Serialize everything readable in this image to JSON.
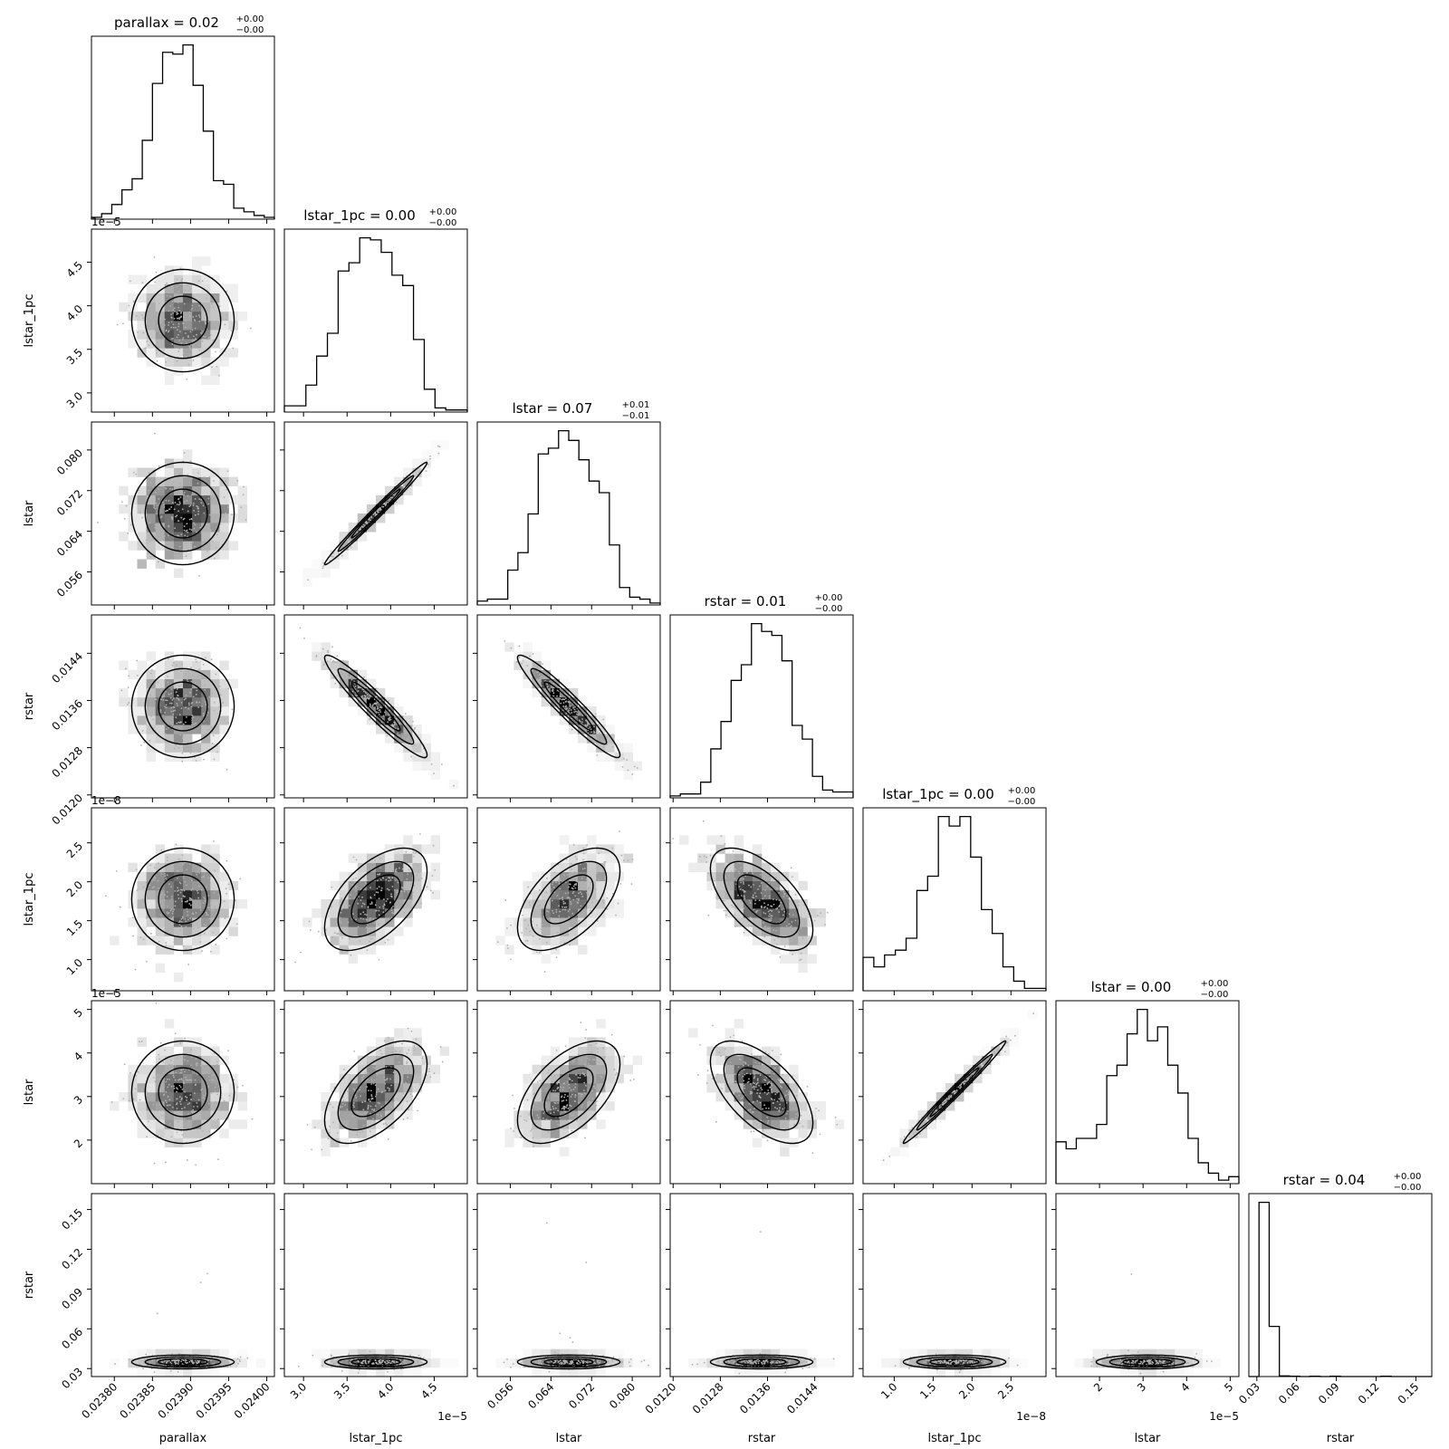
{
  "chart_data": {
    "type": "corner",
    "grid": false,
    "params": [
      {
        "name": "parallax",
        "title_main": "parallax = 0.02",
        "title_sup": "+0.00",
        "title_sub": "−0.00",
        "range": [
          0.02377,
          0.02401
        ],
        "ticks": [
          0.0238,
          0.02385,
          0.0239,
          0.02395,
          0.024
        ],
        "tick_labels": [
          "0.02380",
          "0.02385",
          "0.02390",
          "0.02395",
          "0.02400"
        ],
        "offset": "",
        "hist": [
          1,
          3,
          8,
          16,
          22,
          43,
          74,
          91,
          90,
          95,
          73,
          48,
          21,
          19,
          6,
          4,
          2,
          1
        ]
      },
      {
        "name": "lstar_1pc",
        "title_main": "lstar_1pc = 0.00",
        "title_sup": "+0.00",
        "title_sub": "−0.00",
        "range": [
          2.78e-05,
          4.88e-05
        ],
        "ticks": [
          3e-05,
          3.5e-05,
          4e-05,
          4.5e-05
        ],
        "tick_labels": [
          "3.0",
          "3.5",
          "4.0",
          "4.5"
        ],
        "offset": "1e−5",
        "hist": [
          3,
          3,
          13,
          27,
          38,
          68,
          72,
          84,
          83,
          77,
          66,
          61,
          35,
          11,
          2,
          1,
          1
        ]
      },
      {
        "name": "lstar",
        "title_main": "lstar = 0.07",
        "title_sup": "+0.01",
        "title_sub": "−0.01",
        "range": [
          0.0495,
          0.0855
        ],
        "ticks": [
          0.056,
          0.064,
          0.072,
          0.08
        ],
        "tick_labels": [
          "0.056",
          "0.064",
          "0.072",
          "0.080"
        ],
        "offset": "",
        "hist": [
          2,
          3,
          3,
          18,
          27,
          47,
          78,
          81,
          90,
          85,
          75,
          64,
          58,
          31,
          9,
          4,
          3,
          1
        ]
      },
      {
        "name": "rstar",
        "title_main": "rstar = 0.01",
        "title_sup": "+0.00",
        "title_sub": "−0.00",
        "range": [
          0.01195,
          0.01505
        ],
        "ticks": [
          0.012,
          0.0128,
          0.0136,
          0.0144
        ],
        "tick_labels": [
          "0.0120",
          "0.0128",
          "0.0136",
          "0.0144"
        ],
        "offset": "",
        "hist": [
          1,
          2,
          2,
          8,
          25,
          39,
          60,
          68,
          89,
          85,
          83,
          70,
          37,
          30,
          11,
          4,
          3,
          3
        ]
      },
      {
        "name": "lstar_1pc",
        "title_main": "lstar_1pc = 0.00",
        "title_sup": "+0.00",
        "title_sub": "−0.00",
        "range": [
          6e-09,
          2.95e-08
        ],
        "ticks": [
          1e-08,
          1.5e-08,
          2e-08,
          2.5e-08
        ],
        "tick_labels": [
          "1.0",
          "1.5",
          "2.0",
          "2.5"
        ],
        "offset": "1e−8",
        "hist": [
          14,
          10,
          15,
          17,
          22,
          42,
          48,
          73,
          69,
          73,
          56,
          34,
          24,
          10,
          4,
          1,
          1
        ]
      },
      {
        "name": "lstar",
        "title_main": "lstar = 0.00",
        "title_sup": "+0.00",
        "title_sub": "−0.00",
        "range": [
          1e-05,
          5.2e-05
        ],
        "ticks": [
          2e-05,
          3e-05,
          4e-05,
          5e-05
        ],
        "tick_labels": [
          "2",
          "3",
          "4",
          "5"
        ],
        "offset": "1e−5",
        "hist": [
          12,
          10,
          13,
          13,
          17,
          31,
          34,
          43,
          50,
          41,
          45,
          34,
          26,
          13,
          6,
          3,
          1,
          2
        ]
      },
      {
        "name": "rstar",
        "title_main": "rstar = 0.04",
        "title_sup": "+0.00",
        "title_sub": "−0.00",
        "range": [
          0.024,
          0.162
        ],
        "ticks": [
          0.03,
          0.06,
          0.09,
          0.12,
          0.15
        ],
        "tick_labels": [
          "0.03",
          "0.06",
          "0.09",
          "0.12",
          "0.15"
        ],
        "offset": "",
        "hist": [
          0,
          490,
          141,
          2,
          1,
          0,
          1,
          0,
          1,
          0,
          0,
          0,
          0,
          1,
          0,
          0,
          0,
          0
        ]
      }
    ],
    "correlations": [
      [
        1,
        0,
        0,
        0,
        0,
        0,
        0
      ],
      [
        0,
        1,
        0.99,
        -0.95,
        0.55,
        0.55,
        0
      ],
      [
        0,
        0.99,
        1,
        -0.95,
        0.55,
        0.55,
        0
      ],
      [
        0,
        -0.95,
        -0.95,
        1,
        -0.6,
        -0.6,
        0
      ],
      [
        0,
        0.55,
        0.55,
        -0.6,
        1,
        0.99,
        0
      ],
      [
        0,
        0.55,
        0.55,
        -0.6,
        0.99,
        1,
        0
      ],
      [
        0,
        0,
        0,
        0,
        0,
        0,
        1
      ]
    ]
  }
}
